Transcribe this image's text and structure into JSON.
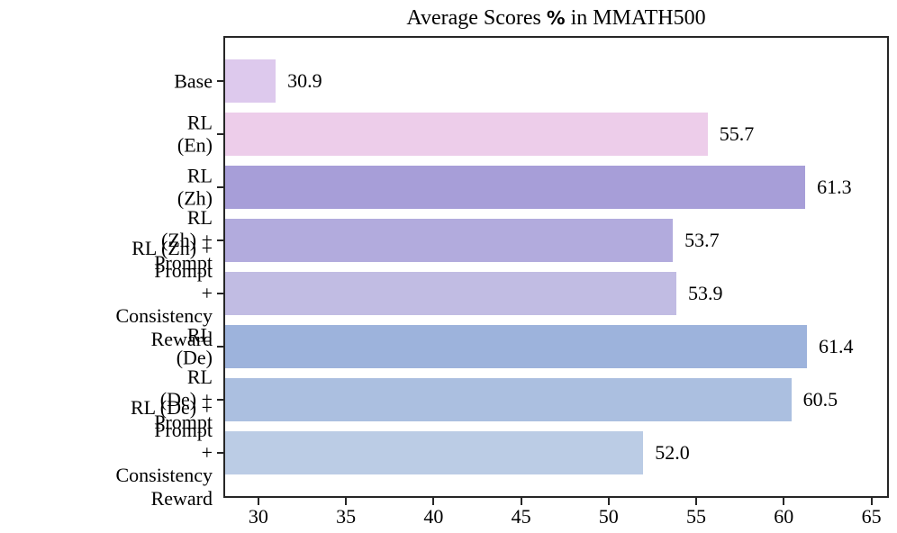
{
  "figure": {
    "title_prefix": "Average Scores ",
    "title_percent": "%",
    "title_suffix": " in MMATH500"
  },
  "chart_data": {
    "type": "bar",
    "orientation": "horizontal",
    "title": "Average Scores % in MMATH500",
    "categories": [
      "Base",
      "RL (En)",
      "RL (Zh)",
      "RL (Zh) + Prompt",
      "RL (Zh) + Prompt\n+ Consistency Reward",
      "RL (De)",
      "RL (De) + Prompt",
      "RL (De) + Prompt\n+ Consistency Reward"
    ],
    "values": [
      30.9,
      55.7,
      61.3,
      53.7,
      53.9,
      61.4,
      60.5,
      52.0
    ],
    "value_labels": [
      "30.9",
      "55.7",
      "61.3",
      "53.7",
      "53.9",
      "61.4",
      "60.5",
      "52.0"
    ],
    "bar_colors": [
      "#ddc9ed",
      "#edcdea",
      "#a79ed8",
      "#b2abdd",
      "#c1bce3",
      "#9db3dc",
      "#abbfe0",
      "#bbcce5"
    ],
    "xlim": [
      28,
      66
    ],
    "x_ticks": [
      30,
      35,
      40,
      45,
      50,
      55,
      60,
      65
    ],
    "xlabel": "",
    "ylabel": "",
    "grid": false,
    "legend": false,
    "axis_color": "#262626",
    "value_label_color": "#000000"
  }
}
